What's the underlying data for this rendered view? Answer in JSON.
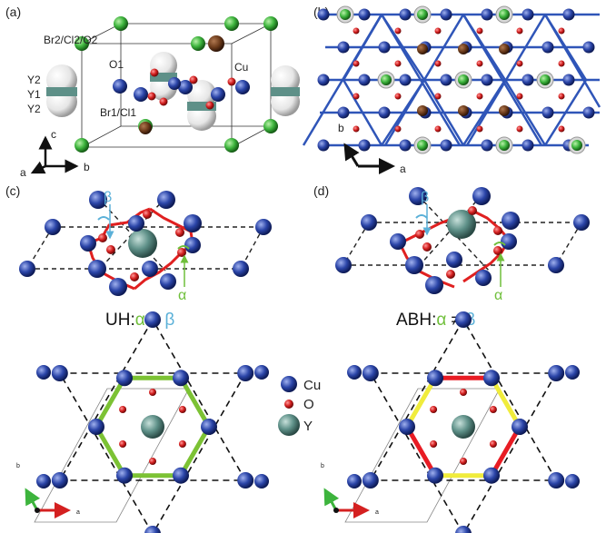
{
  "panels": {
    "a": {
      "letter": "(a)",
      "atoms": {
        "br2": "Br2/Cl2/O2",
        "y2_top": "Y2",
        "y1": "Y1",
        "y2_bot": "Y2",
        "o1": "O1",
        "cu": "Cu",
        "br1": "Br1/Cl1"
      },
      "axes": {
        "c": "c",
        "a": "a",
        "b": "b"
      }
    },
    "b": {
      "letter": "(b)",
      "axes": {
        "b": "b",
        "a": "a"
      }
    },
    "c": {
      "letter": "(c)",
      "beta": "β",
      "alpha": "α",
      "caption_prefix": "UH:",
      "caption_alpha": "α",
      "caption_rel": " = ",
      "caption_beta": "β",
      "axes": {
        "b": "b",
        "a": "a"
      }
    },
    "d": {
      "letter": "(d)",
      "beta": "β",
      "alpha": "α",
      "caption_prefix": "ABH:",
      "caption_alpha": "α",
      "caption_rel": " ≠ ",
      "caption_beta": "β",
      "axes": {
        "b": "b",
        "a": "a"
      }
    }
  },
  "legend": {
    "cu": "Cu",
    "o": "O",
    "y": "Y"
  },
  "colors": {
    "cu": "#2b45a8",
    "o": "#d42020",
    "y": "#5e9088",
    "cl": "#3db43d",
    "bond": "#2f55b8",
    "green_hex": "#7cc234",
    "red_hex": "#e81c24",
    "yellow_hex": "#f0ec3c",
    "alpha": "#6fbf3a",
    "beta": "#5ab0d8"
  }
}
